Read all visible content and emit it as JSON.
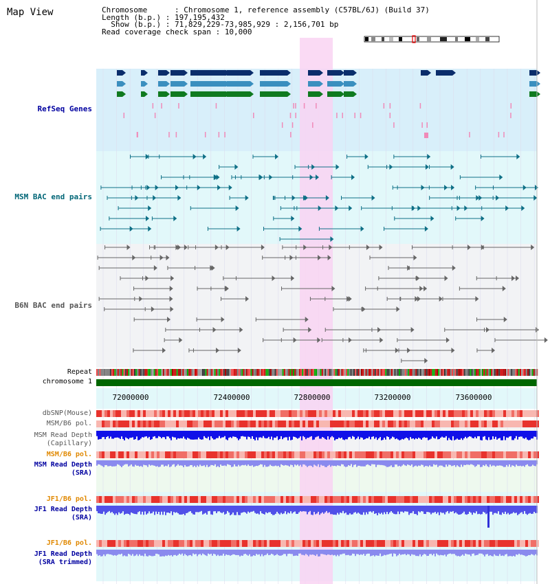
{
  "title": "Map View",
  "info": {
    "chromosome_key": "Chromosome",
    "chromosome_val": "Chromosome 1, reference assembly (C57BL/6J) (Build 37)",
    "length_key": "Length (b.p.)",
    "length_val": "197,195,432",
    "show_key": "Show (b.p.)",
    "show_val": "71,829,229-73,985,929 : 2,156,701 bp",
    "coverage_key": "Read coverage check span",
    "coverage_val": "10,000"
  },
  "tracks": {
    "refseq": "RefSeq Genes",
    "msm_bac": "MSM BAC end pairs",
    "b6n_bac": "B6N BAC end pairs",
    "repeat": "Repeat",
    "chromosome": "chromosome 1",
    "dbsnp": "dbSNP(Mouse)",
    "msm_pol1": "MSM/B6 pol.",
    "msm_depth_cap_1": "MSM Read Depth",
    "msm_depth_cap_2": "(Capillary)",
    "msm_pol2": "MSM/B6 pol.",
    "msm_depth_sra_1": "MSM Read Depth",
    "msm_depth_sra_2": "(SRA)",
    "jf1_pol1": "JF1/B6 pol.",
    "jf1_depth_sra_1": "JF1 Read Depth",
    "jf1_depth_sra_2": "(SRA)",
    "jf1_pol2": "JF1/B6 pol.",
    "jf1_depth_trim_1": "JF1 Read Depth",
    "jf1_depth_trim_2": "(SRA trimmed)"
  },
  "axis": {
    "ticks": [
      "72000000",
      "72400000",
      "72800000",
      "73200000",
      "73600000"
    ]
  },
  "colors": {
    "highlight": "#f9d3f2",
    "refseq_bg": "#d8effa",
    "msm_bg": "#e2f8fa",
    "b6n_bg": "#f2f3f5",
    "chromosome_bar": "#006600",
    "label_blue": "#0000a0",
    "label_orange": "#e08800",
    "label_teal": "#006677"
  }
}
